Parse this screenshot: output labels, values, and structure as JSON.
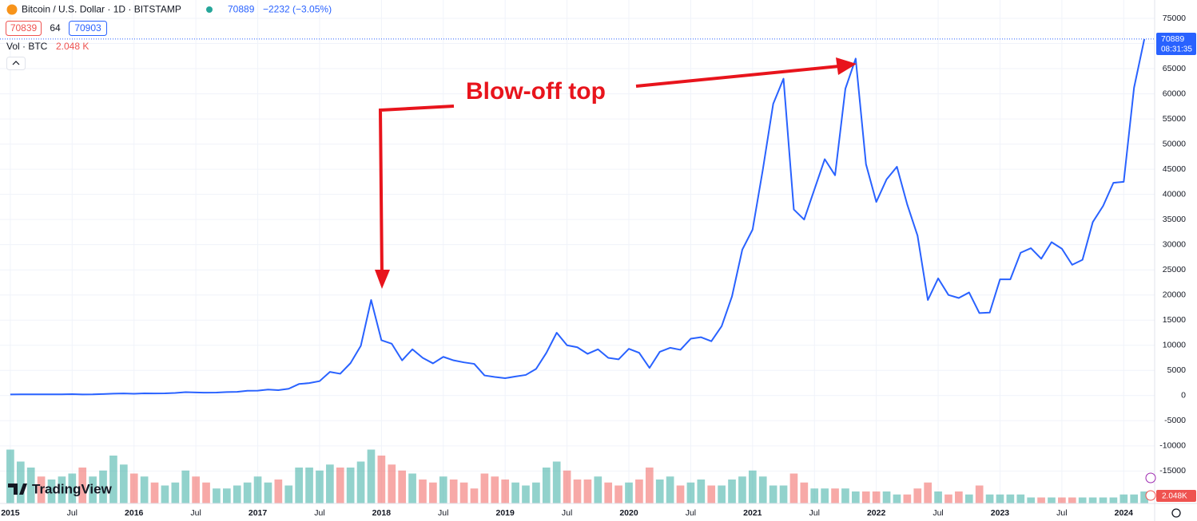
{
  "chart_data": {
    "type": "line",
    "title": "Bitcoin / U.S. Dollar · 1D · BITSTAMP",
    "last_price": 70889,
    "change": "−2232 (−3.05%)",
    "bid": 70839,
    "spread": 64,
    "ask": 70903,
    "countdown": "08:31:35",
    "volume_label": "Vol · BTC",
    "volume_last": "2.048 K",
    "volume_badge": "2.048K",
    "annotation": "Blow-off top",
    "brand": "TradingView",
    "color": "#2962ff",
    "volume_up_color": "#26a69a",
    "volume_down_color": "#ef5350",
    "grid": true,
    "x": [
      "2015-01",
      "2015-02",
      "2015-03",
      "2015-04",
      "2015-05",
      "2015-06",
      "2015-07",
      "2015-08",
      "2015-09",
      "2015-10",
      "2015-11",
      "2015-12",
      "2016-01",
      "2016-02",
      "2016-03",
      "2016-04",
      "2016-05",
      "2016-06",
      "2016-07",
      "2016-08",
      "2016-09",
      "2016-10",
      "2016-11",
      "2016-12",
      "2017-01",
      "2017-02",
      "2017-03",
      "2017-04",
      "2017-05",
      "2017-06",
      "2017-07",
      "2017-08",
      "2017-09",
      "2017-10",
      "2017-11",
      "2017-12",
      "2018-01",
      "2018-02",
      "2018-03",
      "2018-04",
      "2018-05",
      "2018-06",
      "2018-07",
      "2018-08",
      "2018-09",
      "2018-10",
      "2018-11",
      "2018-12",
      "2019-01",
      "2019-02",
      "2019-03",
      "2019-04",
      "2019-05",
      "2019-06",
      "2019-07",
      "2019-08",
      "2019-09",
      "2019-10",
      "2019-11",
      "2019-12",
      "2020-01",
      "2020-02",
      "2020-03",
      "2020-04",
      "2020-05",
      "2020-06",
      "2020-07",
      "2020-08",
      "2020-09",
      "2020-10",
      "2020-11",
      "2020-12",
      "2021-01",
      "2021-02",
      "2021-03",
      "2021-04",
      "2021-05",
      "2021-06",
      "2021-07",
      "2021-08",
      "2021-09",
      "2021-10",
      "2021-11",
      "2021-12",
      "2022-01",
      "2022-02",
      "2022-03",
      "2022-04",
      "2022-05",
      "2022-06",
      "2022-07",
      "2022-08",
      "2022-09",
      "2022-10",
      "2022-11",
      "2022-12",
      "2023-01",
      "2023-02",
      "2023-03",
      "2023-04",
      "2023-05",
      "2023-06",
      "2023-07",
      "2023-08",
      "2023-09",
      "2023-10",
      "2023-11",
      "2023-12",
      "2024-01",
      "2024-02",
      "2024-03"
    ],
    "values": [
      220,
      250,
      250,
      235,
      235,
      250,
      285,
      230,
      235,
      310,
      380,
      430,
      370,
      435,
      415,
      450,
      530,
      670,
      625,
      575,
      610,
      700,
      740,
      960,
      970,
      1190,
      1080,
      1350,
      2300,
      2480,
      2870,
      4700,
      4340,
      6450,
      9900,
      19000,
      11000,
      10300,
      7000,
      9200,
      7500,
      6400,
      7700,
      7000,
      6600,
      6300,
      4000,
      3700,
      3450,
      3800,
      4100,
      5300,
      8500,
      12500,
      10000,
      9600,
      8300,
      9200,
      7500,
      7200,
      9300,
      8500,
      5500,
      8700,
      9500,
      9100,
      11300,
      11600,
      10800,
      13800,
      19700,
      29000,
      33000,
      45000,
      58000,
      63000,
      37000,
      35000,
      41000,
      47000,
      43800,
      61000,
      67000,
      46000,
      38500,
      43000,
      45500,
      38000,
      31800,
      19000,
      23300,
      20000,
      19400,
      20500,
      16400,
      16500,
      23100,
      23100,
      28400,
      29300,
      27200,
      30500,
      29200,
      26000,
      27000,
      34500,
      37700,
      42300,
      42500,
      61200,
      70889
    ],
    "volume": [
      18,
      14,
      12,
      9,
      8,
      9,
      10,
      12,
      9,
      11,
      16,
      13,
      10,
      9,
      7,
      6,
      7,
      11,
      9,
      7,
      5,
      5,
      6,
      7,
      9,
      7,
      8,
      6,
      12,
      12,
      11,
      13,
      12,
      12,
      14,
      18,
      16,
      13,
      11,
      10,
      8,
      7,
      9,
      8,
      7,
      5,
      10,
      9,
      8,
      7,
      6,
      7,
      12,
      14,
      11,
      8,
      8,
      9,
      7,
      6,
      7,
      8,
      12,
      8,
      9,
      6,
      7,
      8,
      6,
      6,
      8,
      9,
      11,
      9,
      6,
      6,
      10,
      7,
      5,
      5,
      5,
      5,
      4,
      4,
      4,
      4,
      3,
      3,
      5,
      7,
      4,
      3,
      4,
      3,
      6,
      3,
      3,
      3,
      3,
      2,
      2,
      2,
      2,
      2,
      2,
      2,
      2,
      2,
      3,
      3,
      4
    ],
    "vlim": [
      0,
      40
    ],
    "xlim": [
      "2014-12",
      "2024-04"
    ],
    "xticks": [
      {
        "value": "2015-01",
        "label": "2015"
      },
      {
        "value": "2015-07",
        "label": "Jul"
      },
      {
        "value": "2016-01",
        "label": "2016"
      },
      {
        "value": "2016-07",
        "label": "Jul"
      },
      {
        "value": "2017-01",
        "label": "2017"
      },
      {
        "value": "2017-07",
        "label": "Jul"
      },
      {
        "value": "2018-01",
        "label": "2018"
      },
      {
        "value": "2018-07",
        "label": "Jul"
      },
      {
        "value": "2019-01",
        "label": "2019"
      },
      {
        "value": "2019-07",
        "label": "Jul"
      },
      {
        "value": "2020-01",
        "label": "2020"
      },
      {
        "value": "2020-07",
        "label": "Jul"
      },
      {
        "value": "2021-01",
        "label": "2021"
      },
      {
        "value": "2021-07",
        "label": "Jul"
      },
      {
        "value": "2022-01",
        "label": "2022"
      },
      {
        "value": "2022-07",
        "label": "Jul"
      },
      {
        "value": "2023-01",
        "label": "2023"
      },
      {
        "value": "2023-07",
        "label": "Jul"
      },
      {
        "value": "2024-01",
        "label": "2024"
      }
    ],
    "ylim": [
      -21450,
      78650
    ],
    "yticks": [
      75000,
      70000,
      65000,
      60000,
      55000,
      50000,
      45000,
      40000,
      35000,
      30000,
      25000,
      20000,
      15000,
      10000,
      5000,
      0,
      -5000,
      -10000,
      -15000
    ]
  }
}
